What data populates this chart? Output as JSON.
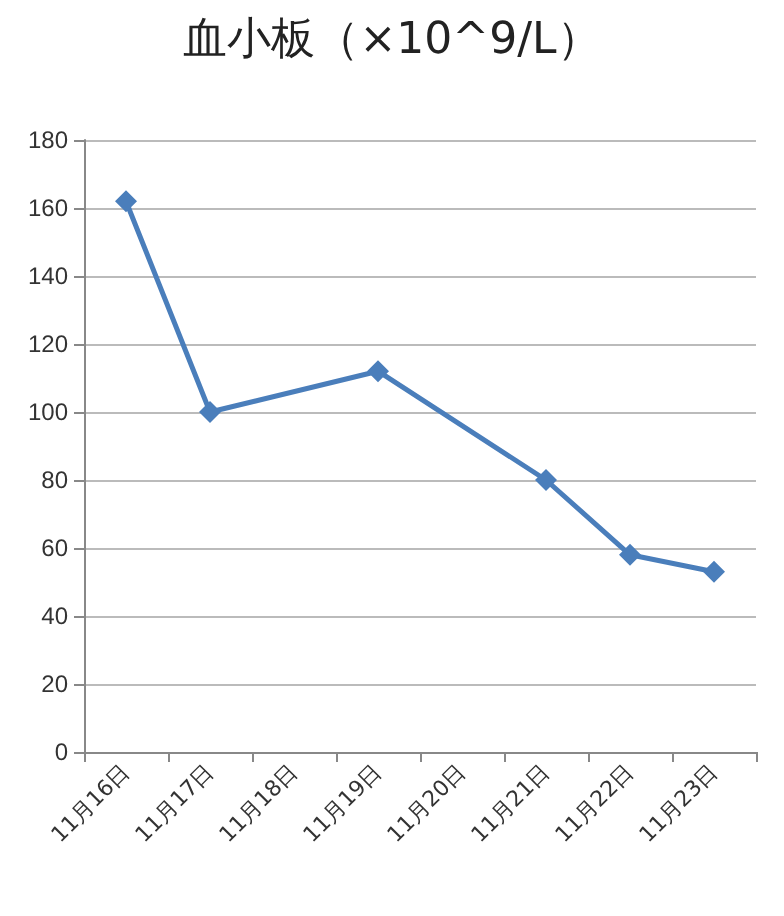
{
  "chart_data": {
    "type": "line",
    "title": "血小板（×10^9/L）",
    "categories": [
      "11月16日",
      "11月17日",
      "11月18日",
      "11月19日",
      "11月20日",
      "11月21日",
      "11月22日",
      "11月23日"
    ],
    "series": [
      {
        "color": "#4a7ebb",
        "values": [
          162,
          100,
          null,
          112,
          null,
          80,
          58,
          53
        ]
      }
    ],
    "ylim": [
      0,
      180
    ],
    "yticks": [
      0,
      20,
      40,
      60,
      80,
      100,
      120,
      140,
      160,
      180
    ],
    "grid": "y",
    "marker": "diamond",
    "line_style": "solid"
  }
}
